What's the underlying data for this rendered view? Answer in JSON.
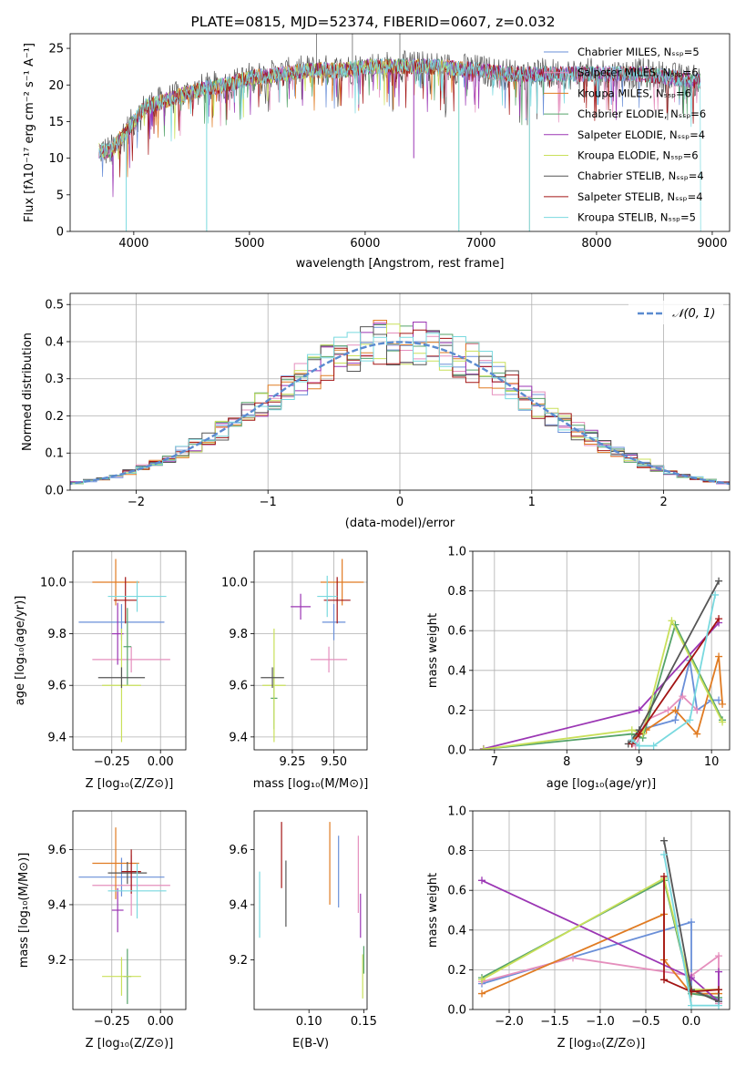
{
  "colors": {
    "chabrier_miles": "#6a8fd8",
    "salpeter_miles": "#e58fbd",
    "kroupa_miles": "#e07b22",
    "chabrier_elodie": "#55a36a",
    "salpeter_elodie": "#9b36b4",
    "kroupa_elodie": "#c9e05a",
    "chabrier_stelib": "#555555",
    "salpeter_stelib": "#a31414",
    "kroupa_stelib": "#79d9df"
  },
  "chart_data": [
    {
      "type": "line",
      "title": "PLATE=0815, MJD=52374, FIBERID=0607, z=0.032",
      "xlabel": "wavelength [Angstrom, rest frame]",
      "ylabel": "Flux [fλ10⁻¹⁷ erg cm⁻² s⁻¹ A⁻¹]",
      "xlim": [
        3450,
        9150
      ],
      "ylim": [
        0,
        27
      ],
      "xticks": [
        4000,
        5000,
        6000,
        7000,
        8000,
        9000
      ],
      "yticks": [
        0,
        5,
        10,
        15,
        20,
        25
      ],
      "legend_position": "right",
      "legend": [
        "Chabrier MILES, Nₛₛₚ=5",
        "Salpeter MILES, Nₛₛₚ=6",
        "Kroupa MILES, Nₛₛₚ=6",
        "Chabrier ELODIE, Nₛₛₚ=6",
        "Salpeter ELODIE, Nₛₛₚ=4",
        "Kroupa ELODIE, Nₛₛₚ=6",
        "Chabrier STELIB, Nₛₛₚ=4",
        "Salpeter STELIB, Nₛₛₚ=4",
        "Kroupa STELIB, Nₛₛₚ=5"
      ],
      "spectrum_envelope": {
        "wavelength": [
          3700,
          3800,
          3900,
          4000,
          4100,
          4200,
          4400,
          4600,
          4800,
          5000,
          5200,
          5500,
          5800,
          6000,
          6300,
          6600,
          7000,
          7200,
          7500,
          8000,
          8400,
          8900
        ],
        "flux": [
          11,
          11,
          13,
          15,
          17,
          17.5,
          18.5,
          19.5,
          20,
          21,
          21.3,
          22,
          22,
          22.5,
          22.5,
          22.5,
          22,
          21.5,
          21.5,
          21.5,
          21.5,
          20.5
        ]
      },
      "edges": [
        {
          "series": "Kroupa ELODIE",
          "start": 3700,
          "end": 6810
        },
        {
          "series": "Kroupa MILES",
          "start": 3700,
          "end": 7420
        },
        {
          "series": "Kroupa STELIB",
          "start": 3700,
          "end": 8900
        }
      ],
      "dips": [
        {
          "wavelength": 3935,
          "flux": 0
        },
        {
          "wavelength": 4630,
          "flux": 0
        },
        {
          "wavelength": 6810,
          "flux": 0
        },
        {
          "wavelength": 7420,
          "flux": 0
        },
        {
          "wavelength": 6420,
          "flux": 10
        }
      ]
    },
    {
      "type": "histogram",
      "xlabel": "(data-model)/error",
      "ylabel": "Normed distribution",
      "xlim": [
        -2.5,
        2.5
      ],
      "ylim": [
        0,
        0.53
      ],
      "xticks": [
        -2,
        -1,
        0,
        1,
        2
      ],
      "yticks": [
        0.0,
        0.1,
        0.2,
        0.3,
        0.4,
        0.5
      ],
      "grid": true,
      "bin_width": 0.1,
      "reference": {
        "label": "𝒩(0, 1)",
        "type": "normal",
        "mean": 0,
        "sigma": 1,
        "style": "dashed",
        "color": "#5b8bd0",
        "legend_position": "top-right"
      }
    },
    {
      "type": "errorbar",
      "xlabel": "Z [log₁₀(Z/Z⊙)]",
      "ylabel": "age  [log₁₀(age/yr)]",
      "xlim": [
        -0.45,
        0.13
      ],
      "ylim": [
        9.35,
        10.12
      ],
      "xticks": [
        -0.25,
        0.0
      ],
      "yticks": [
        9.4,
        9.6,
        9.8,
        10.0
      ],
      "grid": true,
      "points": [
        {
          "series": "chabrier_miles",
          "x": -0.2,
          "xerr": 0.22,
          "y": 9.845,
          "yerr": 0.07
        },
        {
          "series": "salpeter_miles",
          "x": -0.15,
          "xerr": 0.2,
          "y": 9.7,
          "yerr": 0.05
        },
        {
          "series": "kroupa_miles",
          "x": -0.23,
          "xerr": 0.12,
          "y": 10.0,
          "yerr": 0.09
        },
        {
          "series": "chabrier_elodie",
          "x": -0.17,
          "xerr": 0.02,
          "y": 9.75,
          "yerr": 0.15
        },
        {
          "series": "salpeter_elodie",
          "x": -0.22,
          "xerr": 0.03,
          "y": 9.8,
          "yerr": 0.12
        },
        {
          "series": "kroupa_elodie",
          "x": -0.2,
          "xerr": 0.1,
          "y": 9.6,
          "yerr": 0.22
        },
        {
          "series": "chabrier_stelib",
          "x": -0.2,
          "xerr": 0.12,
          "y": 9.63,
          "yerr": 0.04
        },
        {
          "series": "salpeter_stelib",
          "x": -0.18,
          "xerr": 0.06,
          "y": 9.93,
          "yerr": 0.09
        },
        {
          "series": "kroupa_stelib",
          "x": -0.12,
          "xerr": 0.15,
          "y": 9.945,
          "yerr": 0.06
        }
      ]
    },
    {
      "type": "errorbar",
      "xlabel": "mass [log₁₀(M/M⊙)]",
      "ylabel": "",
      "xlim": [
        9.02,
        9.7
      ],
      "ylim": [
        9.35,
        10.12
      ],
      "xticks": [
        9.25,
        9.5
      ],
      "yticks": [
        9.4,
        9.6,
        9.8,
        10.0
      ],
      "grid": true,
      "points": [
        {
          "series": "chabrier_miles",
          "x": 9.5,
          "xerr": 0.07,
          "y": 9.845,
          "yerr": 0.07
        },
        {
          "series": "salpeter_miles",
          "x": 9.47,
          "xerr": 0.11,
          "y": 9.7,
          "yerr": 0.05
        },
        {
          "series": "kroupa_miles",
          "x": 9.55,
          "xerr": 0.13,
          "y": 10.0,
          "yerr": 0.09
        },
        {
          "series": "chabrier_elodie",
          "x": 9.14,
          "xerr": 0.02,
          "y": 9.55,
          "yerr": 0.12
        },
        {
          "series": "salpeter_elodie",
          "x": 9.3,
          "xerr": 0.06,
          "y": 9.905,
          "yerr": 0.05
        },
        {
          "series": "kroupa_elodie",
          "x": 9.14,
          "xerr": 0.07,
          "y": 9.6,
          "yerr": 0.22
        },
        {
          "series": "chabrier_stelib",
          "x": 9.13,
          "xerr": 0.07,
          "y": 9.63,
          "yerr": 0.04
        },
        {
          "series": "salpeter_stelib",
          "x": 9.52,
          "xerr": 0.08,
          "y": 9.93,
          "yerr": 0.09
        },
        {
          "series": "kroupa_stelib",
          "x": 9.46,
          "xerr": 0.06,
          "y": 9.945,
          "yerr": 0.08
        }
      ]
    },
    {
      "type": "line",
      "xlabel": "age  [log₁₀(age/yr)]",
      "ylabel": "mass weight",
      "xlim": [
        6.7,
        10.25
      ],
      "ylim": [
        0,
        1.0
      ],
      "xticks": [
        7,
        8,
        9,
        10
      ],
      "yticks": [
        0.0,
        0.2,
        0.4,
        0.6,
        0.8,
        1.0
      ],
      "grid": true,
      "series": [
        {
          "key": "chabrier_miles",
          "x": [
            8.9,
            9.0,
            9.5,
            9.7,
            9.8,
            10.0,
            10.1
          ],
          "y": [
            0.03,
            0.1,
            0.15,
            0.45,
            0.2,
            0.25,
            0.25
          ]
        },
        {
          "key": "salpeter_miles",
          "x": [
            8.95,
            9.1,
            9.4,
            9.6,
            9.8
          ],
          "y": [
            0.02,
            0.15,
            0.2,
            0.27,
            0.2
          ]
        },
        {
          "key": "kroupa_miles",
          "x": [
            8.9,
            9.1,
            9.5,
            9.8,
            10.1,
            10.15
          ],
          "y": [
            0.05,
            0.1,
            0.2,
            0.08,
            0.47,
            0.23
          ]
        },
        {
          "key": "chabrier_elodie",
          "x": [
            6.85,
            8.9,
            9.05,
            9.5,
            10.15
          ],
          "y": [
            0.003,
            0.08,
            0.06,
            0.63,
            0.15
          ]
        },
        {
          "key": "salpeter_elodie",
          "x": [
            6.85,
            9.0,
            10.1
          ],
          "y": [
            0.005,
            0.2,
            0.64
          ]
        },
        {
          "key": "kroupa_elodie",
          "x": [
            6.85,
            8.9,
            9.05,
            9.45,
            10.15
          ],
          "y": [
            0.003,
            0.1,
            0.08,
            0.65,
            0.14
          ]
        },
        {
          "key": "chabrier_stelib",
          "x": [
            8.85,
            9.0,
            10.1
          ],
          "y": [
            0.03,
            0.1,
            0.85
          ]
        },
        {
          "key": "salpeter_stelib",
          "x": [
            8.9,
            9.0,
            10.1
          ],
          "y": [
            0.03,
            0.08,
            0.66
          ]
        },
        {
          "key": "kroupa_stelib",
          "x": [
            8.9,
            9.0,
            9.2,
            9.7,
            10.05
          ],
          "y": [
            0.05,
            0.02,
            0.02,
            0.15,
            0.78
          ]
        }
      ]
    },
    {
      "type": "errorbar",
      "xlabel": "Z [log₁₀(Z/Z⊙)]",
      "ylabel": "mass [log₁₀(M/M⊙)]",
      "xlim": [
        -0.45,
        0.13
      ],
      "ylim": [
        9.02,
        9.74
      ],
      "xticks": [
        -0.25,
        0.0
      ],
      "yticks": [
        9.2,
        9.4,
        9.6
      ],
      "grid": true,
      "points": [
        {
          "series": "chabrier_miles",
          "x": -0.2,
          "xerr": 0.22,
          "y": 9.5,
          "yerr": 0.07
        },
        {
          "series": "salpeter_miles",
          "x": -0.15,
          "xerr": 0.2,
          "y": 9.47,
          "yerr": 0.11
        },
        {
          "series": "kroupa_miles",
          "x": -0.23,
          "xerr": 0.12,
          "y": 9.55,
          "yerr": 0.13
        },
        {
          "series": "chabrier_elodie",
          "x": -0.17,
          "xerr": 0.02,
          "y": 9.14,
          "yerr": 0.1
        },
        {
          "series": "salpeter_elodie",
          "x": -0.22,
          "xerr": 0.03,
          "y": 9.38,
          "yerr": 0.08
        },
        {
          "series": "kroupa_elodie",
          "x": -0.2,
          "xerr": 0.1,
          "y": 9.14,
          "yerr": 0.07
        },
        {
          "series": "chabrier_stelib",
          "x": -0.17,
          "xerr": 0.1,
          "y": 9.515,
          "yerr": 0.04
        },
        {
          "series": "salpeter_stelib",
          "x": -0.15,
          "xerr": 0.05,
          "y": 9.52,
          "yerr": 0.08
        },
        {
          "series": "kroupa_stelib",
          "x": -0.12,
          "xerr": 0.15,
          "y": 9.45,
          "yerr": 0.1
        }
      ]
    },
    {
      "type": "errorbar",
      "xlabel": "E(B-V)",
      "ylabel": "",
      "xlim": [
        0.05,
        0.153
      ],
      "ylim": [
        9.02,
        9.74
      ],
      "xticks": [
        0.1,
        0.15
      ],
      "yticks": [
        9.2,
        9.4,
        9.6
      ],
      "grid": false,
      "points": [
        {
          "series": "kroupa_stelib",
          "x": 0.055,
          "y": 9.4,
          "yerr": 0.12
        },
        {
          "series": "salpeter_stelib",
          "x": 0.075,
          "y": 9.58,
          "yerr": 0.12
        },
        {
          "series": "chabrier_stelib",
          "x": 0.079,
          "y": 9.44,
          "yerr": 0.12
        },
        {
          "series": "kroupa_miles",
          "x": 0.119,
          "y": 9.55,
          "yerr": 0.15
        },
        {
          "series": "chabrier_miles",
          "x": 0.127,
          "y": 9.52,
          "yerr": 0.13
        },
        {
          "series": "salpeter_miles",
          "x": 0.145,
          "y": 9.51,
          "yerr": 0.14
        },
        {
          "series": "salpeter_elodie",
          "x": 0.147,
          "y": 9.36,
          "yerr": 0.08
        },
        {
          "series": "kroupa_elodie",
          "x": 0.149,
          "y": 9.14,
          "yerr": 0.08
        },
        {
          "series": "chabrier_elodie",
          "x": 0.15,
          "y": 9.2,
          "yerr": 0.05
        }
      ]
    },
    {
      "type": "line",
      "xlabel": "Z [log₁₀(Z/Z⊙)]",
      "ylabel": "mass weight",
      "xlim": [
        -2.4,
        0.42
      ],
      "ylim": [
        0,
        1.0
      ],
      "xticks": [
        -2.0,
        -1.5,
        -1.0,
        -0.5,
        0.0
      ],
      "yticks": [
        0.0,
        0.2,
        0.4,
        0.6,
        0.8,
        1.0
      ],
      "grid": true,
      "series": [
        {
          "key": "chabrier_miles",
          "x": [
            -2.3,
            0.0,
            0.0,
            0.3
          ],
          "y": [
            0.13,
            0.44,
            0.1,
            0.05
          ]
        },
        {
          "key": "salpeter_miles",
          "x": [
            -2.3,
            -1.3,
            0.0,
            0.3,
            0.3
          ],
          "y": [
            0.14,
            0.26,
            0.17,
            0.27,
            0.03
          ]
        },
        {
          "key": "kroupa_miles",
          "x": [
            -2.3,
            -0.3,
            -0.3,
            0.0,
            0.3
          ],
          "y": [
            0.08,
            0.48,
            0.25,
            0.08,
            0.08
          ]
        },
        {
          "key": "chabrier_elodie",
          "x": [
            -2.3,
            -0.3,
            0.0,
            0.3
          ],
          "y": [
            0.16,
            0.65,
            0.08,
            0.06
          ]
        },
        {
          "key": "salpeter_elodie",
          "x": [
            -2.3,
            0.0,
            0.3,
            0.3
          ],
          "y": [
            0.65,
            0.16,
            0.04,
            0.19
          ]
        },
        {
          "key": "kroupa_elodie",
          "x": [
            -2.3,
            -0.3,
            0.0,
            0.3
          ],
          "y": [
            0.15,
            0.66,
            0.1,
            0.1
          ]
        },
        {
          "key": "chabrier_stelib",
          "x": [
            -0.3,
            0.0,
            0.3,
            0.3
          ],
          "y": [
            0.85,
            0.1,
            0.04,
            0.1
          ]
        },
        {
          "key": "salpeter_stelib",
          "x": [
            -0.3,
            -0.3,
            0.0,
            0.3
          ],
          "y": [
            0.67,
            0.15,
            0.09,
            0.1
          ]
        },
        {
          "key": "kroupa_stelib",
          "x": [
            -0.3,
            0.0,
            0.3
          ],
          "y": [
            0.78,
            0.02,
            0.02
          ]
        }
      ]
    }
  ]
}
